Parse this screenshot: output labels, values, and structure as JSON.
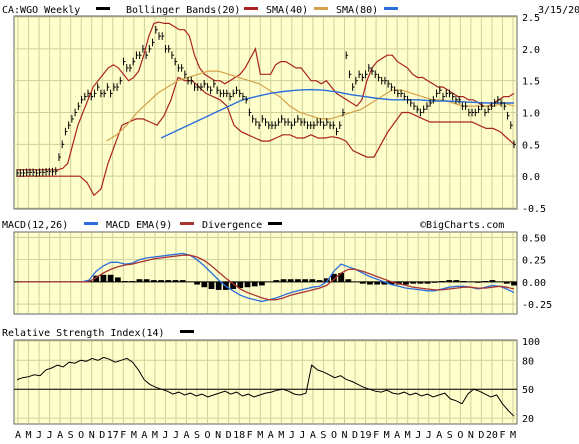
{
  "chart_data": {
    "type": "stock-chart",
    "symbol_label": "CA:WGO Weekly",
    "date": "3/15/20",
    "watermark": "©BigCharts.com",
    "months": [
      "A",
      "M",
      "J",
      "J",
      "A",
      "S",
      "O",
      "N",
      "D",
      "17",
      "F",
      "M",
      "A",
      "M",
      "J",
      "J",
      "A",
      "S",
      "O",
      "N",
      "D",
      "18",
      "F",
      "M",
      "A",
      "M",
      "J",
      "J",
      "A",
      "S",
      "O",
      "N",
      "D",
      "19",
      "F",
      "M",
      "A",
      "M",
      "J",
      "J",
      "A",
      "S",
      "O",
      "N",
      "D",
      "20",
      "F",
      "M"
    ],
    "colors": {
      "price": "#000000",
      "bollinger": "#aa2222",
      "sma40": "#d4a24a",
      "sma80": "#2a6fdb",
      "macd": "#2a6fdb",
      "macd_ema": "#aa3333",
      "divergence": "#000000",
      "panel_bg": "#ffffcc",
      "grid": "#cfcf9a"
    },
    "price_panel": {
      "legend": [
        {
          "label": "CA:WGO Weekly",
          "color": "#000000"
        },
        {
          "label": "Bollinger Bands(20)",
          "color": "#aa2222"
        },
        {
          "label": "SMA(40)",
          "color": "#d4a24a"
        },
        {
          "label": "SMA(80)",
          "color": "#2a6fdb"
        }
      ],
      "y_ticks": [
        "2.5",
        "2.0",
        "1.5",
        "1.0",
        "0.5",
        "0.0",
        "-0.5"
      ],
      "ylim": [
        -0.5,
        2.5
      ],
      "close": [
        0.05,
        0.05,
        0.05,
        0.06,
        0.06,
        0.06,
        0.05,
        0.06,
        0.06,
        0.07,
        0.07,
        0.07,
        0.08,
        0.3,
        0.5,
        0.7,
        0.8,
        0.9,
        1.0,
        1.1,
        1.2,
        1.25,
        1.3,
        1.25,
        1.3,
        1.4,
        1.3,
        1.3,
        1.4,
        1.3,
        1.4,
        1.4,
        1.5,
        1.8,
        1.7,
        1.7,
        1.8,
        1.9,
        1.9,
        2.0,
        1.9,
        2.0,
        2.1,
        2.3,
        2.2,
        2.2,
        2.0,
        2.0,
        1.9,
        1.8,
        1.7,
        1.7,
        1.6,
        1.5,
        1.5,
        1.4,
        1.4,
        1.4,
        1.45,
        1.4,
        1.35,
        1.45,
        1.35,
        1.3,
        1.3,
        1.3,
        1.25,
        1.3,
        1.35,
        1.3,
        1.25,
        1.2,
        1.0,
        0.9,
        0.85,
        0.8,
        0.9,
        0.85,
        0.8,
        0.8,
        0.8,
        0.85,
        0.9,
        0.85,
        0.85,
        0.8,
        0.85,
        0.9,
        0.85,
        0.85,
        0.8,
        0.8,
        0.8,
        0.85,
        0.85,
        0.8,
        0.85,
        0.8,
        0.8,
        0.7,
        0.8,
        1.0,
        1.9,
        1.6,
        1.4,
        1.5,
        1.6,
        1.55,
        1.6,
        1.7,
        1.65,
        1.6,
        1.55,
        1.5,
        1.5,
        1.45,
        1.4,
        1.35,
        1.3,
        1.3,
        1.25,
        1.2,
        1.15,
        1.1,
        1.05,
        1.0,
        1.05,
        1.1,
        1.15,
        1.2,
        1.3,
        1.35,
        1.25,
        1.3,
        1.3,
        1.25,
        1.2,
        1.2,
        1.1,
        1.1,
        1.0,
        1.0,
        1.0,
        1.05,
        1.1,
        1.0,
        1.05,
        1.1,
        1.15,
        1.2,
        1.15,
        1.1,
        0.95,
        0.8,
        0.5
      ],
      "bollinger_upper": [
        0.1,
        0.1,
        0.1,
        0.1,
        0.1,
        0.1,
        0.1,
        0.1,
        0.1,
        0.12,
        0.2,
        0.5,
        0.8,
        1.0,
        1.2,
        1.4,
        1.5,
        1.6,
        1.7,
        1.75,
        1.7,
        1.6,
        1.5,
        1.55,
        1.65,
        1.9,
        2.2,
        2.4,
        2.42,
        2.4,
        2.4,
        2.35,
        2.3,
        2.3,
        2.2,
        1.9,
        1.7,
        1.6,
        1.55,
        1.5,
        1.5,
        1.45,
        1.5,
        1.55,
        1.6,
        1.7,
        1.85,
        2.0,
        1.6,
        1.6,
        1.6,
        1.75,
        1.8,
        1.8,
        1.75,
        1.7,
        1.7,
        1.6,
        1.5,
        1.5,
        1.45,
        1.5,
        1.4,
        1.3,
        1.25,
        1.2,
        1.15,
        1.1,
        1.2,
        1.5,
        1.7,
        1.8,
        1.85,
        1.9,
        1.9,
        1.8,
        1.75,
        1.7,
        1.6,
        1.55,
        1.55,
        1.5,
        1.45,
        1.4,
        1.4,
        1.35,
        1.3,
        1.25,
        1.25,
        1.2,
        1.2,
        1.15,
        1.1,
        1.1,
        1.15,
        1.2,
        1.25,
        1.25,
        1.3
      ],
      "bollinger_lower": [
        0.0,
        0.0,
        0.0,
        0.0,
        0.0,
        0.0,
        0.0,
        0.0,
        0.0,
        0.0,
        -0.1,
        -0.3,
        -0.2,
        0.2,
        0.5,
        0.8,
        0.85,
        0.9,
        0.9,
        0.85,
        0.8,
        0.95,
        1.2,
        1.55,
        1.5,
        1.5,
        1.4,
        1.3,
        1.25,
        1.2,
        1.1,
        0.8,
        0.7,
        0.65,
        0.6,
        0.55,
        0.55,
        0.6,
        0.65,
        0.65,
        0.6,
        0.6,
        0.65,
        0.6,
        0.6,
        0.62,
        0.6,
        0.55,
        0.4,
        0.35,
        0.3,
        0.3,
        0.5,
        0.7,
        0.85,
        1.0,
        1.0,
        0.95,
        0.9,
        0.85,
        0.85,
        0.85,
        0.85,
        0.85,
        0.85,
        0.85,
        0.8,
        0.75,
        0.75,
        0.7,
        0.6,
        0.5
      ],
      "sma40": [
        0.55,
        0.65,
        0.8,
        1.0,
        1.15,
        1.3,
        1.4,
        1.5,
        1.55,
        1.6,
        1.65,
        1.65,
        1.6,
        1.55,
        1.5,
        1.45,
        1.35,
        1.25,
        1.1,
        1.0,
        0.95,
        0.9,
        0.9,
        0.95,
        1.0,
        1.05,
        1.15,
        1.25,
        1.35,
        1.35,
        1.3,
        1.25,
        1.2,
        1.2,
        1.15,
        1.1,
        1.1,
        1.1,
        1.1,
        1.15,
        1.1
      ],
      "sma80": [
        0.6,
        0.7,
        0.8,
        0.9,
        1.0,
        1.1,
        1.2,
        1.25,
        1.3,
        1.33,
        1.35,
        1.36,
        1.35,
        1.32,
        1.28,
        1.25,
        1.22,
        1.2,
        1.2,
        1.2,
        1.18,
        1.18,
        1.17,
        1.16,
        1.15,
        1.15,
        1.15
      ]
    },
    "macd_panel": {
      "legend": [
        {
          "label": "MACD(12,26)",
          "color": "#2a6fdb"
        },
        {
          "label": "MACD EMA(9)",
          "color": "#aa3333"
        },
        {
          "label": "Divergence",
          "color": "#000000"
        }
      ],
      "y_ticks": [
        "0.50",
        "0.25",
        "0.00",
        "-0.25"
      ],
      "ylim": [
        -0.35,
        0.55
      ],
      "macd": [
        0,
        0,
        0,
        0,
        0,
        0,
        0,
        0,
        0,
        0,
        0.02,
        0.12,
        0.18,
        0.22,
        0.22,
        0.2,
        0.21,
        0.25,
        0.27,
        0.28,
        0.29,
        0.3,
        0.31,
        0.32,
        0.3,
        0.25,
        0.18,
        0.1,
        0.02,
        -0.05,
        -0.1,
        -0.15,
        -0.18,
        -0.2,
        -0.22,
        -0.2,
        -0.18,
        -0.15,
        -0.12,
        -0.1,
        -0.08,
        -0.06,
        -0.05,
        0.0,
        0.12,
        0.2,
        0.17,
        0.14,
        0.1,
        0.06,
        0.03,
        0.0,
        -0.03,
        -0.05,
        -0.07,
        -0.08,
        -0.09,
        -0.1,
        -0.1,
        -0.08,
        -0.06,
        -0.05,
        -0.05,
        -0.06,
        -0.08,
        -0.06,
        -0.04,
        -0.05,
        -0.08,
        -0.12
      ],
      "macd_ema": [
        0,
        0,
        0,
        0,
        0,
        0,
        0,
        0,
        0,
        0,
        0,
        0.05,
        0.1,
        0.14,
        0.17,
        0.19,
        0.2,
        0.22,
        0.24,
        0.26,
        0.27,
        0.28,
        0.29,
        0.3,
        0.3,
        0.28,
        0.24,
        0.18,
        0.11,
        0.04,
        -0.02,
        -0.08,
        -0.12,
        -0.15,
        -0.18,
        -0.2,
        -0.2,
        -0.18,
        -0.15,
        -0.13,
        -0.11,
        -0.09,
        -0.07,
        -0.04,
        0.03,
        0.1,
        0.14,
        0.14,
        0.12,
        0.09,
        0.06,
        0.03,
        0.0,
        -0.02,
        -0.04,
        -0.06,
        -0.07,
        -0.08,
        -0.09,
        -0.09,
        -0.08,
        -0.07,
        -0.06,
        -0.06,
        -0.07,
        -0.07,
        -0.06,
        -0.05,
        -0.06,
        -0.08
      ],
      "divergence": [
        0,
        0,
        0,
        0,
        0,
        0,
        0,
        0,
        0,
        0,
        0.02,
        0.07,
        0.08,
        0.08,
        0.05,
        0.01,
        0.01,
        0.03,
        0.03,
        0.02,
        0.02,
        0.02,
        0.02,
        0.02,
        0.0,
        -0.03,
        -0.06,
        -0.08,
        -0.09,
        -0.09,
        -0.08,
        -0.07,
        -0.06,
        -0.05,
        -0.04,
        0.0,
        0.02,
        0.03,
        0.03,
        0.03,
        0.03,
        0.03,
        0.02,
        0.04,
        0.09,
        0.1,
        0.03,
        0.0,
        -0.02,
        -0.03,
        -0.03,
        -0.03,
        -0.03,
        -0.03,
        -0.03,
        -0.02,
        -0.02,
        -0.02,
        -0.01,
        0.01,
        0.02,
        0.02,
        0.01,
        0.0,
        -0.01,
        0.01,
        0.02,
        0.0,
        -0.02,
        -0.04
      ]
    },
    "rsi_panel": {
      "legend": [
        {
          "label": "Relative Strength Index(14)",
          "color": "#000000"
        }
      ],
      "y_ticks": [
        "100",
        "80",
        "50",
        "20"
      ],
      "ylim": [
        15,
        100
      ],
      "reference_line": 50,
      "rsi": [
        60,
        62,
        63,
        65,
        64,
        70,
        72,
        75,
        73,
        78,
        77,
        80,
        79,
        82,
        80,
        83,
        81,
        78,
        80,
        82,
        78,
        70,
        60,
        55,
        52,
        50,
        48,
        45,
        47,
        44,
        46,
        43,
        45,
        42,
        44,
        46,
        48,
        45,
        47,
        43,
        45,
        42,
        44,
        46,
        47,
        49,
        50,
        48,
        45,
        44,
        46,
        75,
        70,
        68,
        65,
        62,
        64,
        60,
        58,
        55,
        52,
        50,
        48,
        47,
        49,
        46,
        45,
        47,
        44,
        46,
        43,
        45,
        42,
        44,
        46,
        40,
        38,
        35,
        45,
        50,
        48,
        45,
        42,
        44,
        35,
        28,
        22
      ]
    }
  }
}
